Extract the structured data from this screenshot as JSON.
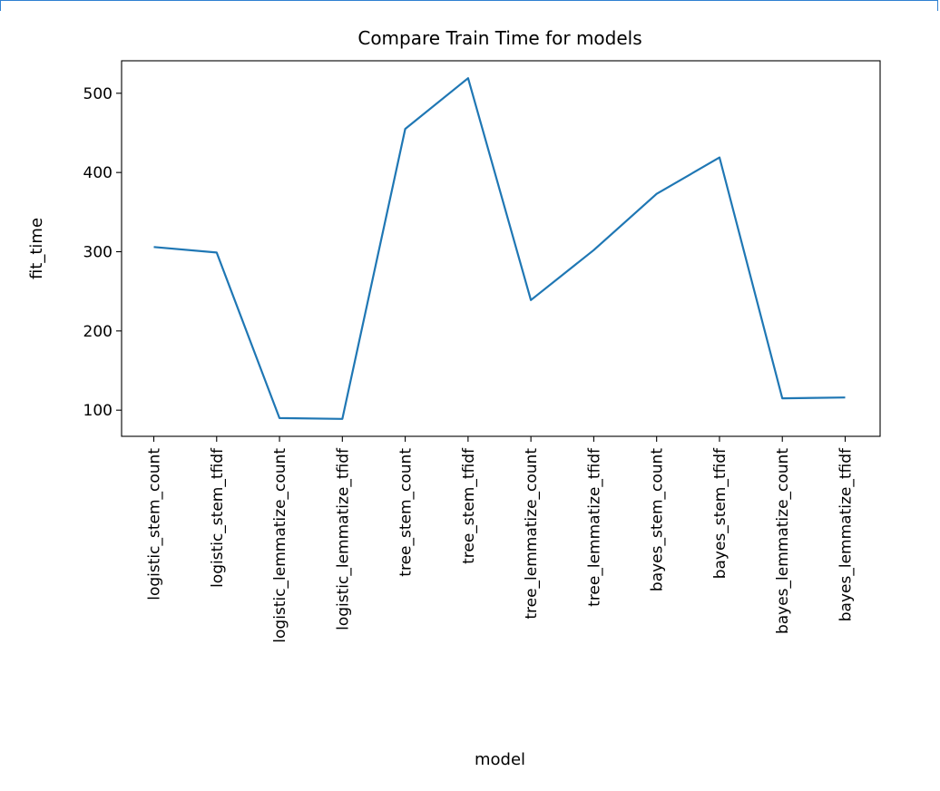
{
  "chart_data": {
    "type": "line",
    "title": "Compare Train Time for models",
    "xlabel": "model",
    "ylabel": "fit_time",
    "categories": [
      "logistic_stem_count",
      "logistic_stem_tfidf",
      "logistic_lemmatize_count",
      "logistic_lemmatize_tfidf",
      "tree_stem_count",
      "tree_stem_tfidf",
      "tree_lemmatize_count",
      "tree_lemmatize_tfidf",
      "bayes_stem_count",
      "bayes_stem_tfidf",
      "bayes_lemmatize_count",
      "bayes_lemmatize_tfidf"
    ],
    "series": [
      {
        "values": [
          306,
          299,
          90,
          89,
          455,
          519,
          239,
          302,
          373,
          419,
          115,
          116
        ]
      }
    ],
    "yticks": [
      100,
      200,
      300,
      400,
      500
    ],
    "ylim": [
      67,
      541
    ],
    "grid": false,
    "colors": {
      "line": "#1f77b4",
      "axes": "#000000",
      "frame": "#2f80d1"
    }
  }
}
